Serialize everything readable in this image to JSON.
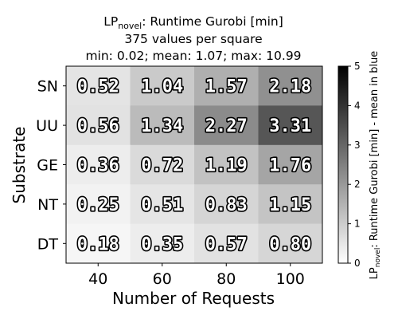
{
  "chart_data": {
    "type": "heatmap",
    "title": {
      "prefix": "LP",
      "prefix_sub": "novel",
      "rest": ": Runtime Gurobi [min]",
      "line2": "375 values per square",
      "line3": "min: 0.02; mean: 1.07; max: 10.99"
    },
    "xlabel": "Number of Requests",
    "ylabel": "Substrate",
    "x_categories": [
      "40",
      "60",
      "80",
      "100"
    ],
    "y_categories": [
      "SN",
      "UU",
      "GE",
      "NT",
      "DT"
    ],
    "values": [
      [
        0.52,
        1.04,
        1.57,
        2.18
      ],
      [
        0.56,
        1.34,
        2.27,
        3.31
      ],
      [
        0.36,
        0.72,
        1.19,
        1.76
      ],
      [
        0.25,
        0.51,
        0.83,
        1.15
      ],
      [
        0.18,
        0.35,
        0.57,
        0.8
      ]
    ],
    "colorscale": "grayscale",
    "colorbar": {
      "min": 0,
      "max": 5,
      "ticks": [
        0,
        1,
        2,
        3,
        4,
        5
      ],
      "label_prefix": "LP",
      "label_sub": "novel",
      "label_rest": ": Runtime Gurobi [min] - mean in blue"
    }
  }
}
